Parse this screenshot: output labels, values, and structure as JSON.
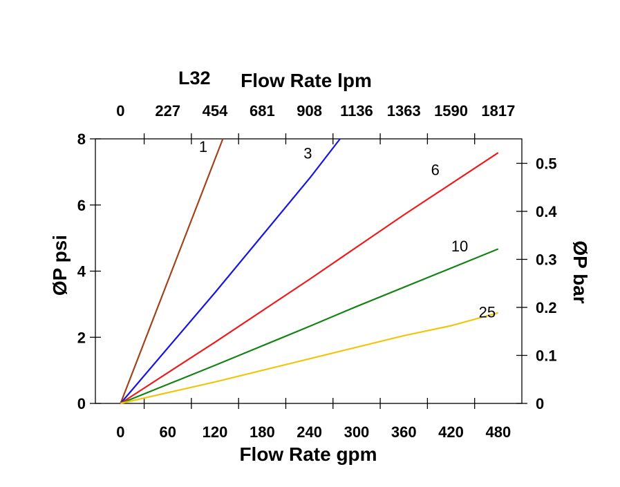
{
  "chart_data": {
    "type": "line",
    "title": "L32",
    "xlabel": "Flow Rate gpm",
    "x2label": "Flow Rate lpm",
    "ylabel": "ØP psi",
    "y2label": "ØP bar",
    "xlim": [
      -32,
      510
    ],
    "ylim": [
      0,
      8
    ],
    "y2lim": [
      0,
      0.551
    ],
    "xticks": [
      0,
      60,
      120,
      180,
      240,
      300,
      360,
      420,
      480
    ],
    "x2ticks": [
      "0",
      "227",
      "454",
      "681",
      "908",
      "1136",
      "1363",
      "1590",
      "1817"
    ],
    "yticks": [
      0,
      2,
      4,
      6,
      8
    ],
    "y2ticks": [
      "0",
      "0.1",
      "0.2",
      "0.3",
      "0.4",
      "0.5"
    ],
    "grid": false,
    "series": [
      {
        "name": "1",
        "color": "#a0421a",
        "points": [
          [
            0,
            0
          ],
          [
            130,
            8
          ]
        ],
        "label_at": [
          105,
          7.6
        ]
      },
      {
        "name": "3",
        "color": "#1414e6",
        "points": [
          [
            0,
            0
          ],
          [
            120,
            3.35
          ],
          [
            241,
            6.83
          ],
          [
            279,
            8
          ]
        ],
        "label_at": [
          238,
          7.4
        ]
      },
      {
        "name": "6",
        "color": "#ee1a1a",
        "points": [
          [
            0,
            0
          ],
          [
            120,
            1.85
          ],
          [
            240,
            3.75
          ],
          [
            360,
            5.7
          ],
          [
            480,
            7.58
          ]
        ],
        "label_at": [
          400,
          6.9
        ]
      },
      {
        "name": "10",
        "color": "#138413",
        "points": [
          [
            0,
            0
          ],
          [
            120,
            1.15
          ],
          [
            240,
            2.33
          ],
          [
            300,
            2.93
          ],
          [
            480,
            4.67
          ]
        ],
        "label_at": [
          431,
          4.6
        ]
      },
      {
        "name": "25",
        "color": "#f2c40c",
        "points": [
          [
            0,
            0
          ],
          [
            120,
            0.65
          ],
          [
            240,
            1.35
          ],
          [
            360,
            2.05
          ],
          [
            420,
            2.35
          ],
          [
            480,
            2.74
          ]
        ],
        "label_at": [
          466,
          2.6
        ]
      }
    ]
  }
}
